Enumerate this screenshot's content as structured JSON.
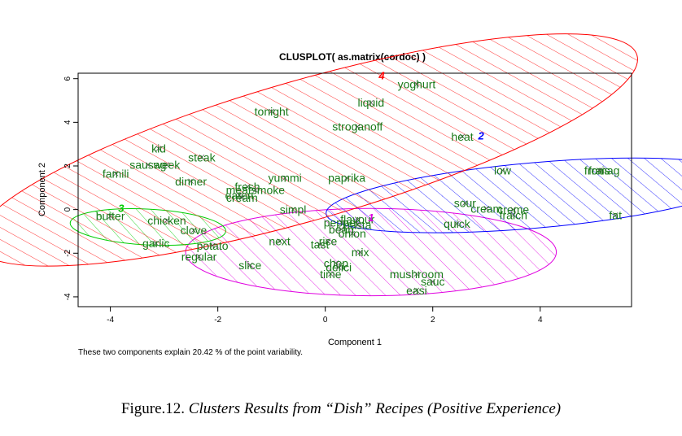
{
  "chart_data": {
    "type": "scatter",
    "title": "CLUSPLOT( as.matrix(cordoc) )",
    "xlabel": "Component 1",
    "ylabel": "Component 2",
    "xlim": [
      -4.6,
      5.7
    ],
    "ylim": [
      -4.45,
      6.25
    ],
    "xticks": [
      -4,
      -2,
      0,
      2,
      4
    ],
    "yticks": [
      -4,
      -2,
      0,
      2,
      4,
      6
    ],
    "grid": false,
    "footnote": "These two components explain 20.42 % of the point variability.",
    "clusters": [
      {
        "id": "1",
        "color": "#e000e0",
        "center": [
          0.85,
          -1.95
        ],
        "rx": 3.45,
        "ry": 2.0,
        "angle": 0,
        "label_pos": [
          0.85,
          -0.35
        ]
      },
      {
        "id": "2",
        "color": "#0000ff",
        "center": [
          3.9,
          0.65
        ],
        "rx": 3.9,
        "ry": 1.5,
        "angle": 5,
        "label_pos": [
          2.9,
          3.4
        ]
      },
      {
        "id": "3",
        "color": "#00cc00",
        "center": [
          -3.3,
          -0.8
        ],
        "rx": 1.45,
        "ry": 0.82,
        "angle": -3,
        "label_pos": [
          -3.8,
          0.08
        ]
      },
      {
        "id": "4",
        "color": "#ff0000",
        "center": [
          -0.35,
          2.73
        ],
        "rx": 6.4,
        "ry": 3.2,
        "angle": 16,
        "label_pos": [
          1.05,
          6.15
        ]
      }
    ],
    "points": [
      {
        "label": "yoghurt",
        "x": 1.7,
        "y": 5.75
      },
      {
        "label": "liquid",
        "x": 0.85,
        "y": 4.9
      },
      {
        "label": "tonight",
        "x": -1.0,
        "y": 4.5
      },
      {
        "label": "stroganoff",
        "x": 0.6,
        "y": 3.8
      },
      {
        "label": "kid",
        "x": -3.1,
        "y": 2.8
      },
      {
        "label": "steak",
        "x": -2.3,
        "y": 2.4
      },
      {
        "label": "sausag",
        "x": -3.3,
        "y": 2.05
      },
      {
        "label": "week",
        "x": -2.95,
        "y": 2.05
      },
      {
        "label": "famili",
        "x": -3.9,
        "y": 1.65
      },
      {
        "label": "dinner",
        "x": -2.5,
        "y": 1.3
      },
      {
        "label": "fresh",
        "x": -1.45,
        "y": 1.05
      },
      {
        "label": "meatsmoke",
        "x": -1.3,
        "y": 0.9
      },
      {
        "label": "yummi",
        "x": -0.75,
        "y": 1.45
      },
      {
        "label": "paprika",
        "x": 0.4,
        "y": 1.45
      },
      {
        "label": "eaten",
        "x": -1.6,
        "y": 0.65
      },
      {
        "label": "cream",
        "x": -1.55,
        "y": 0.55
      },
      {
        "label": "simpl",
        "x": -0.6,
        "y": 0.0
      },
      {
        "label": "butter",
        "x": -4.0,
        "y": -0.3
      },
      {
        "label": "chicken",
        "x": -2.95,
        "y": -0.5
      },
      {
        "label": "clove",
        "x": -2.45,
        "y": -0.95
      },
      {
        "label": "garlic",
        "x": -3.15,
        "y": -1.55
      },
      {
        "label": "potato",
        "x": -2.1,
        "y": -1.65
      },
      {
        "label": "regular",
        "x": -2.35,
        "y": -2.15
      },
      {
        "label": "next",
        "x": -0.85,
        "y": -1.45
      },
      {
        "label": "slice",
        "x": -1.4,
        "y": -2.55
      },
      {
        "label": "flavour",
        "x": 0.6,
        "y": -0.45
      },
      {
        "label": "pepper",
        "x": 0.3,
        "y": -0.6
      },
      {
        "label": "pasta",
        "x": 0.6,
        "y": -0.7
      },
      {
        "label": "bean",
        "x": 0.3,
        "y": -0.9
      },
      {
        "label": "onion",
        "x": 0.5,
        "y": -1.1
      },
      {
        "label": "rice",
        "x": 0.05,
        "y": -1.45
      },
      {
        "label": "tast",
        "x": -0.1,
        "y": -1.6
      },
      {
        "label": "mix",
        "x": 0.65,
        "y": -1.95
      },
      {
        "label": "chop",
        "x": 0.2,
        "y": -2.45
      },
      {
        "label": "delici",
        "x": 0.25,
        "y": -2.65
      },
      {
        "label": "time",
        "x": 0.1,
        "y": -2.95
      },
      {
        "label": "mushroom",
        "x": 1.7,
        "y": -2.95
      },
      {
        "label": "sauc",
        "x": 2.0,
        "y": -3.3
      },
      {
        "label": "easi",
        "x": 1.7,
        "y": -3.7
      },
      {
        "label": "heat",
        "x": 2.55,
        "y": 3.35
      },
      {
        "label": "low",
        "x": 3.3,
        "y": 1.8
      },
      {
        "label": "fromag",
        "x": 5.15,
        "y": 1.8
      },
      {
        "label": "frais",
        "x": 5.1,
        "y": 1.8
      },
      {
        "label": "sour",
        "x": 2.6,
        "y": 0.3
      },
      {
        "label": "cream",
        "x": 3.0,
        "y": 0.05
      },
      {
        "label": "creme",
        "x": 3.5,
        "y": 0.0
      },
      {
        "label": "fraich",
        "x": 3.5,
        "y": -0.25
      },
      {
        "label": "quick",
        "x": 2.45,
        "y": -0.65
      },
      {
        "label": "fat",
        "x": 5.4,
        "y": -0.25
      }
    ]
  },
  "caption": {
    "prefix": "Figure.12. ",
    "italic": "Clusters Results from “Dish” Recipes (Positive Experience)"
  }
}
